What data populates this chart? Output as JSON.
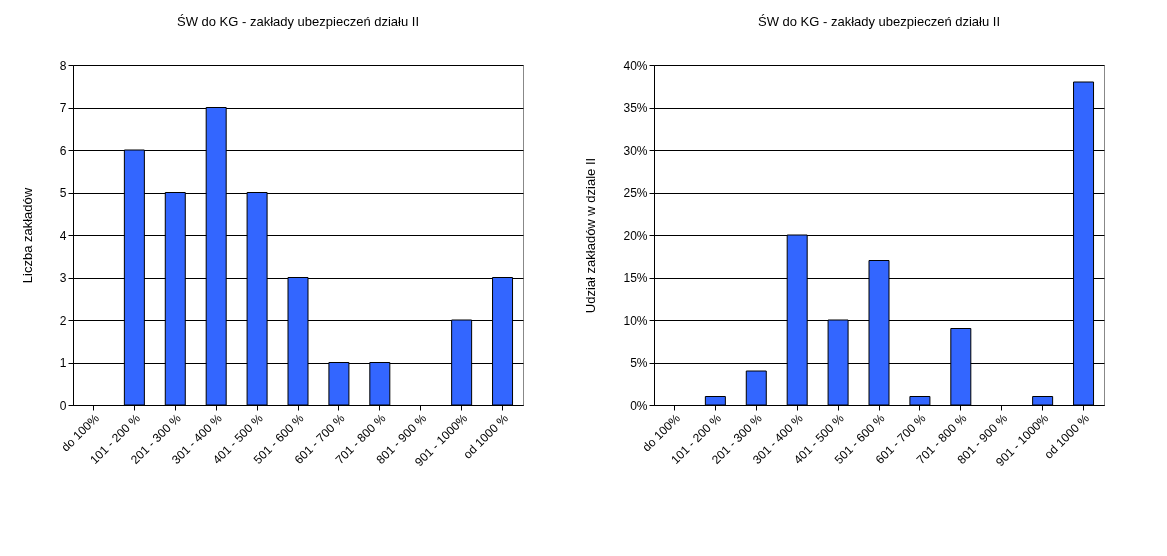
{
  "chart_data": [
    {
      "type": "bar",
      "title": "ŚW do KG - zakłady ubezpieczeń działu II",
      "ylabel": "Liczba zakładów",
      "categories": [
        "do 100%",
        "101 - 200 %",
        "201 - 300 %",
        "301 - 400 %",
        "401 - 500 %",
        "501 - 600 %",
        "601 - 700 %",
        "701 - 800 %",
        "801 - 900 %",
        "901 - 1000%",
        "od 1000 %"
      ],
      "values": [
        null,
        6,
        5,
        7,
        5,
        3,
        1,
        1,
        null,
        2,
        3
      ],
      "color": "#3366ff",
      "ylim": [
        0,
        8
      ],
      "yticks": [
        0,
        1,
        2,
        3,
        4,
        5,
        6,
        7,
        8
      ],
      "grid": "y"
    },
    {
      "type": "bar",
      "title": "ŚW do KG - zakłady ubezpieczeń działu II",
      "ylabel": "Udział zakładów w dziale II",
      "categories": [
        "do 100%",
        "101 - 200 %",
        "201 - 300 %",
        "301 - 400 %",
        "401 - 500 %",
        "501 - 600 %",
        "601 - 700 %",
        "701 - 800 %",
        "801 - 900 %",
        "901 - 1000%",
        "od 1000 %"
      ],
      "values": [
        null,
        1,
        4,
        20,
        10,
        17,
        1,
        9,
        null,
        1,
        38
      ],
      "color": "#3366ff",
      "ylim": [
        0,
        40
      ],
      "yticks": [
        {
          "value": 0,
          "label": "0%"
        },
        {
          "value": 5,
          "label": "5%"
        },
        {
          "value": 10,
          "label": "10%"
        },
        {
          "value": 15,
          "label": "15%"
        },
        {
          "value": 20,
          "label": "20%"
        },
        {
          "value": 25,
          "label": "25%"
        },
        {
          "value": 30,
          "label": "30%"
        },
        {
          "value": 35,
          "label": "35%"
        },
        {
          "value": 40,
          "label": "40%"
        }
      ],
      "grid": "y"
    }
  ]
}
